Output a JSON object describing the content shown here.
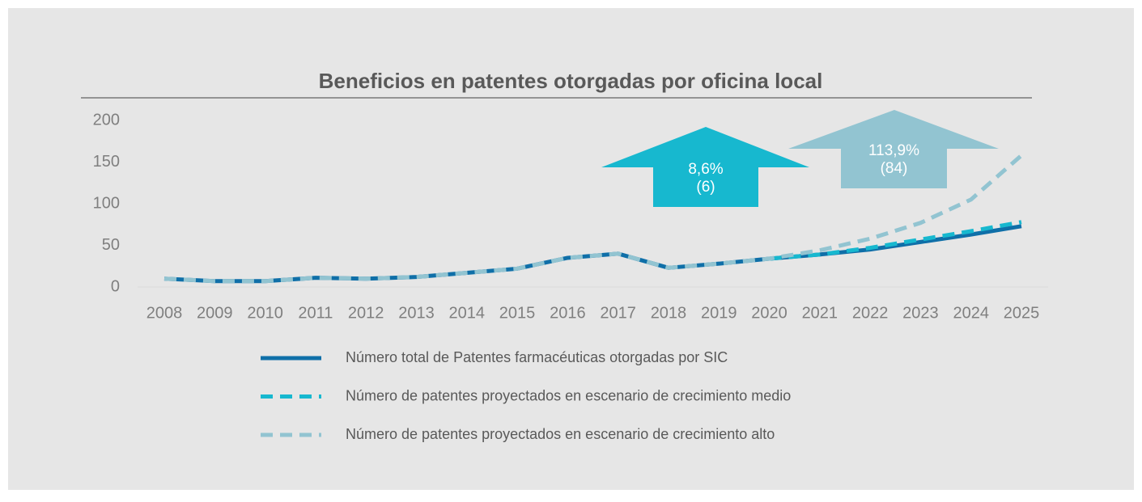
{
  "chart_data": {
    "type": "line",
    "title": "Beneficios en patentes otorgadas por oficina local",
    "categories": [
      "2008",
      "2009",
      "2010",
      "2011",
      "2012",
      "2013",
      "2014",
      "2015",
      "2016",
      "2017",
      "2018",
      "2019",
      "2020",
      "2021",
      "2022",
      "2023",
      "2024",
      "2025"
    ],
    "series": [
      {
        "name": "Número total de Patentes farmacéuticas otorgadas por SIC",
        "color": "#0f6fa8",
        "dash": false,
        "values": [
          10,
          7,
          7,
          11,
          10,
          12,
          17,
          22,
          35,
          40,
          23,
          28,
          34,
          39,
          45,
          54,
          63,
          73
        ]
      },
      {
        "name": "Número de patentes proyectados en escenario de crecimiento medio",
        "color": "#17b8cf",
        "dash": true,
        "values": [
          null,
          null,
          null,
          null,
          null,
          null,
          null,
          null,
          null,
          null,
          null,
          null,
          34,
          39,
          47,
          57,
          67,
          78
        ]
      },
      {
        "name": "Número de patentes proyectados en escenario de crecimiento alto",
        "color": "#92c4d1",
        "dash": true,
        "values": [
          10,
          7,
          7,
          11,
          10,
          12,
          17,
          22,
          35,
          40,
          23,
          28,
          34,
          44,
          58,
          77,
          105,
          158
        ]
      }
    ],
    "ylim": [
      0,
      200
    ],
    "yticks": [
      0,
      50,
      100,
      150,
      200
    ],
    "grid": false,
    "annotations": [
      {
        "lines": [
          "8,6%",
          "(6)"
        ],
        "color": "#17b8cf"
      },
      {
        "lines": [
          "113,9%",
          "(84)"
        ],
        "color": "#92c4d1"
      }
    ]
  }
}
